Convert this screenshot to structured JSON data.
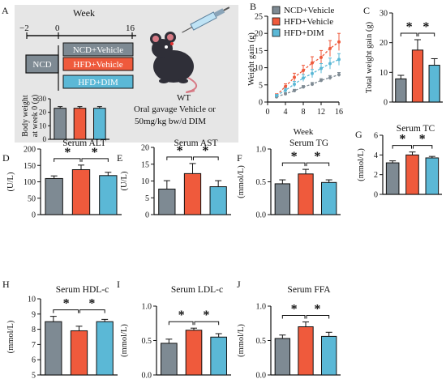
{
  "colors": {
    "ncd": "#7e8a93",
    "hfd": "#ef5a3c",
    "dim": "#5bb8d6",
    "axis": "#111111",
    "panel_bg": "#e6e6e6"
  },
  "significance": "*",
  "panel_a": {
    "letter": "A",
    "week_label": "Week",
    "ticks": [
      "−2",
      "0",
      "16"
    ],
    "ncd_box": "NCD",
    "groups": [
      "NCD+Vehicle",
      "HFD+Vehicle",
      "HFD+DIM"
    ],
    "wt_label": "WT",
    "treatment_line1": "Oral gavage Vehicle or",
    "treatment_line2": "50mg/kg bw/d DIM",
    "inset_ylabel_line1": "Body weight",
    "inset_ylabel_line2": "at week 0 (g)",
    "inset_ticks": [
      "0",
      "10",
      "20",
      "30"
    ],
    "inset_values": [
      23,
      23,
      23
    ],
    "inset_ymax": 30
  },
  "chart_data": [
    {
      "id": "B",
      "type": "line",
      "ylabel": "Weight gain (g)",
      "xlabel": "Week",
      "x": [
        2,
        4,
        6,
        8,
        10,
        12,
        14,
        16
      ],
      "xticks": [
        0,
        4,
        8,
        12,
        16
      ],
      "ylim": [
        0,
        25
      ],
      "yticks": [
        0,
        5,
        10,
        15,
        20,
        25
      ],
      "series": [
        {
          "name": "NCD+Vehicle",
          "color": "ncd",
          "values": [
            1.5,
            2.4,
            3.3,
            4.4,
            5.2,
            6.3,
            7.1,
            8.0
          ],
          "err": [
            0.3,
            0.3,
            0.4,
            0.4,
            0.5,
            0.5,
            0.6,
            0.6
          ]
        },
        {
          "name": "HFD+Vehicle",
          "color": "hfd",
          "values": [
            2.0,
            4.5,
            7.2,
            9.2,
            11.4,
            13.0,
            15.6,
            17.5
          ],
          "err": [
            0.4,
            0.8,
            1.2,
            1.5,
            1.8,
            2.0,
            2.3,
            2.5
          ]
        },
        {
          "name": "HFD+DIM",
          "color": "dim",
          "values": [
            1.9,
            3.4,
            5.2,
            7.0,
            8.3,
            9.8,
            11.2,
            12.4
          ],
          "err": [
            0.3,
            0.6,
            0.8,
            1.0,
            1.2,
            1.4,
            1.6,
            1.7
          ]
        }
      ]
    },
    {
      "id": "C",
      "type": "bar",
      "ylabel": "Total weight gain (g)",
      "ylim": [
        0,
        30
      ],
      "yticks": [
        0,
        10,
        20,
        30
      ],
      "categories": [
        "NCD+Vehicle",
        "HFD+Vehicle",
        "HFD+DIM"
      ],
      "values": [
        7.8,
        17.5,
        12.4
      ],
      "err": [
        1.2,
        3.5,
        2.2
      ]
    },
    {
      "id": "D",
      "type": "bar",
      "title": "Serum ALT",
      "ylabel": "(U/L)",
      "ylim": [
        0,
        200
      ],
      "yticks": [
        0,
        50,
        100,
        150,
        200
      ],
      "categories": [
        "NCD+Vehicle",
        "HFD+Vehicle",
        "HFD+DIM"
      ],
      "values": [
        110,
        137,
        119
      ],
      "err": [
        8,
        14,
        10
      ]
    },
    {
      "id": "E",
      "type": "bar",
      "title": "Serum AST",
      "ylabel": "(U/L)",
      "ylim": [
        0,
        20
      ],
      "yticks": [
        0,
        5,
        10,
        15,
        20
      ],
      "categories": [
        "NCD+Vehicle",
        "HFD+Vehicle",
        "HFD+DIM"
      ],
      "values": [
        7.6,
        12.2,
        8.3
      ],
      "err": [
        2.5,
        3.0,
        1.8
      ]
    },
    {
      "id": "F",
      "type": "bar",
      "title": "Serum TG",
      "ylabel": "(mmol/L)",
      "ylim": [
        0,
        1.0
      ],
      "yticks": [
        0.0,
        0.5,
        1.0
      ],
      "categories": [
        "NCD+Vehicle",
        "HFD+Vehicle",
        "HFD+DIM"
      ],
      "values": [
        0.47,
        0.62,
        0.49
      ],
      "err": [
        0.06,
        0.07,
        0.04
      ]
    },
    {
      "id": "G",
      "type": "bar",
      "title": "Serum TC",
      "ylabel": "(mmol/L)",
      "ylim": [
        0,
        6
      ],
      "yticks": [
        0,
        2,
        4,
        6
      ],
      "categories": [
        "NCD+Vehicle",
        "HFD+Vehicle",
        "HFD+DIM"
      ],
      "values": [
        3.2,
        4.0,
        3.7
      ],
      "err": [
        0.2,
        0.3,
        0.15
      ]
    },
    {
      "id": "H",
      "type": "bar",
      "title": "Serum HDL-c",
      "ylabel": "(mmol/L)",
      "ylim": [
        5,
        10
      ],
      "yticks": [
        5,
        6,
        7,
        8,
        9,
        10
      ],
      "categories": [
        "NCD+Vehicle",
        "HFD+Vehicle",
        "HFD+DIM"
      ],
      "values": [
        8.5,
        7.9,
        8.5
      ],
      "err": [
        0.35,
        0.3,
        0.15
      ]
    },
    {
      "id": "I",
      "type": "bar",
      "title": "Serum LDL-c",
      "ylabel": "(mmol/L)",
      "ylim": [
        0,
        1.0
      ],
      "yticks": [
        0.0,
        0.5,
        1.0
      ],
      "categories": [
        "NCD+Vehicle",
        "HFD+Vehicle",
        "HFD+DIM"
      ],
      "values": [
        0.46,
        0.65,
        0.55
      ],
      "err": [
        0.06,
        0.03,
        0.05
      ]
    },
    {
      "id": "J",
      "type": "bar",
      "title": "Serum FFA",
      "ylabel": "(mmol/L)",
      "ylim": [
        0,
        1.0
      ],
      "yticks": [
        0.0,
        0.5,
        1.0
      ],
      "categories": [
        "NCD+Vehicle",
        "HFD+Vehicle",
        "HFD+DIM"
      ],
      "values": [
        0.53,
        0.7,
        0.56
      ],
      "err": [
        0.05,
        0.07,
        0.06
      ]
    }
  ]
}
